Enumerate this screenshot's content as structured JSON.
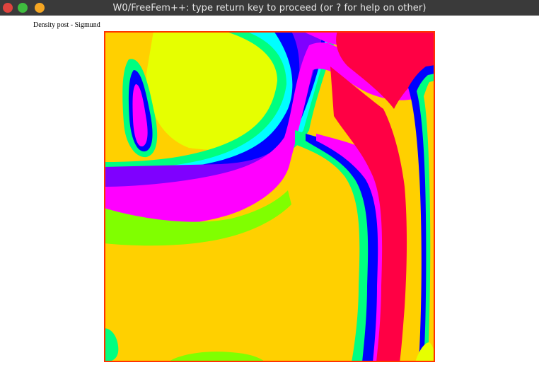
{
  "window": {
    "title": "W0/FreeFem++: type return key to proceed (or ? for help on other)",
    "buttons": {
      "close_color": "#e0443e",
      "minimize_color": "#3fbd3f",
      "maximize_color": "#f5a623"
    }
  },
  "plot": {
    "title": "Density post - Sigmund",
    "colormap": [
      "#ff0044",
      "#ff00ff",
      "#7f00ff",
      "#0000ff",
      "#0080ff",
      "#00ffff",
      "#00ff80",
      "#80ff00",
      "#e6ff00",
      "#ffd000"
    ],
    "border_color": "#ff3300"
  }
}
